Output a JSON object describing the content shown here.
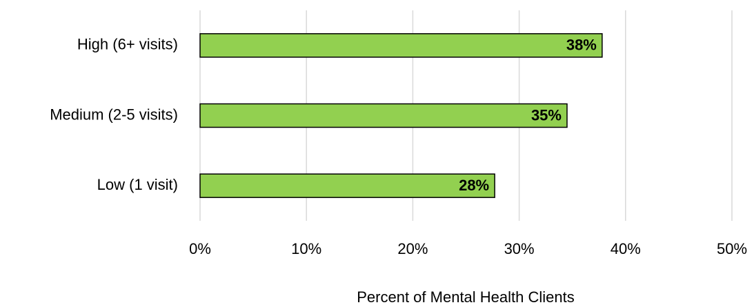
{
  "chart_data": {
    "type": "bar",
    "orientation": "horizontal",
    "categories": [
      "High (6+ visits)",
      "Medium (2-5 visits)",
      "Low (1 visit)"
    ],
    "values": [
      37.8,
      34.5,
      27.7
    ],
    "value_labels": [
      "38%",
      "35%",
      "28%"
    ],
    "color": "#92d050",
    "xlabel": "Percent of Mental Health Clients",
    "xlim": [
      0,
      50
    ],
    "xticks": [
      {
        "value": 0,
        "label": "0%"
      },
      {
        "value": 10,
        "label": "10%"
      },
      {
        "value": 20,
        "label": "20%"
      },
      {
        "value": 30,
        "label": "30%"
      },
      {
        "value": 40,
        "label": "40%"
      },
      {
        "value": 50,
        "label": "50%"
      }
    ],
    "grid": true
  }
}
